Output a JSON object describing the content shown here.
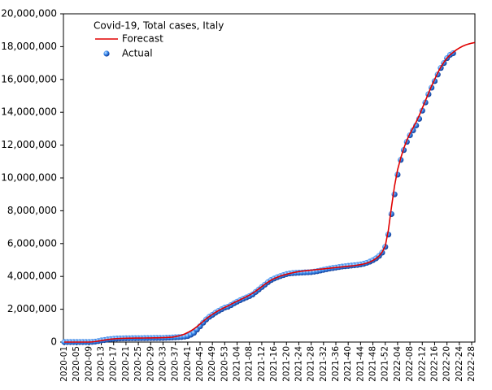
{
  "chart_data": {
    "type": "line",
    "title": "Covid-19, Total cases, Italy",
    "categories": [
      "2020-01",
      null,
      null,
      null,
      "2020-05",
      null,
      null,
      null,
      "2020-09",
      null,
      null,
      null,
      "2020-13",
      null,
      null,
      null,
      "2020-17",
      null,
      null,
      null,
      "2020-21",
      null,
      null,
      null,
      "2020-25",
      null,
      null,
      null,
      "2020-29",
      null,
      null,
      null,
      "2020-33",
      null,
      null,
      null,
      "2020-37",
      null,
      null,
      null,
      "2020-41",
      null,
      null,
      null,
      "2020-45",
      null,
      null,
      null,
      "2020-49",
      null,
      null,
      null,
      "2020-53",
      null,
      null,
      null,
      "2021-04",
      null,
      null,
      null,
      "2021-08",
      null,
      null,
      null,
      "2021-12",
      null,
      null,
      null,
      "2021-16",
      null,
      null,
      null,
      "2021-20",
      null,
      null,
      null,
      "2021-24",
      null,
      null,
      null,
      "2021-28",
      null,
      null,
      null,
      "2021-32",
      null,
      null,
      null,
      "2021-36",
      null,
      null,
      null,
      "2021-40",
      null,
      null,
      null,
      "2021-44",
      null,
      null,
      null,
      "2021-48",
      null,
      null,
      null,
      "2021-52",
      null,
      null,
      null,
      "2022-04",
      null,
      null,
      null,
      "2022-08",
      null,
      null,
      null,
      "2022-12",
      null,
      null,
      null,
      "2022-16",
      null,
      null,
      null,
      "2022-20",
      null,
      null,
      null,
      "2022-24",
      null,
      null,
      null,
      "2022-28",
      null
    ],
    "series": [
      {
        "name": "Forecast",
        "color": "#e00000",
        "style": "line",
        "values": [
          0,
          0,
          0,
          0,
          0,
          0,
          0,
          0,
          0,
          10000,
          30000,
          60000,
          90000,
          120000,
          150000,
          175000,
          195000,
          210000,
          220000,
          228000,
          233000,
          237000,
          240000,
          242000,
          244000,
          246000,
          248000,
          250000,
          252000,
          255000,
          258000,
          262000,
          268000,
          276000,
          287000,
          300000,
          330000,
          370000,
          420000,
          490000,
          580000,
          680000,
          800000,
          940000,
          1100000,
          1260000,
          1420000,
          1560000,
          1690000,
          1810000,
          1920000,
          2020000,
          2110000,
          2200000,
          2300000,
          2400000,
          2490000,
          2580000,
          2670000,
          2760000,
          2860000,
          2970000,
          3100000,
          3240000,
          3380000,
          3520000,
          3650000,
          3770000,
          3870000,
          3950000,
          4020000,
          4080000,
          4130000,
          4180000,
          4220000,
          4260000,
          4290000,
          4320000,
          4340000,
          4360000,
          4380000,
          4400000,
          4420000,
          4440000,
          4460000,
          4480000,
          4500000,
          4520000,
          4540000,
          4560000,
          4580000,
          4600000,
          4620000,
          4640000,
          4660000,
          4690000,
          4720000,
          4760000,
          4810000,
          4880000,
          4970000,
          5090000,
          5250000,
          5480000,
          5850000,
          6800000,
          8200000,
          9500000,
          10500000,
          11200000,
          11800000,
          12300000,
          12700000,
          13050000,
          13400000,
          13800000,
          14250000,
          14700000,
          15150000,
          15600000,
          16000000,
          16400000,
          16750000,
          17050000,
          17300000,
          17500000,
          17650000,
          17800000,
          17920000,
          18020000,
          18100000,
          18160000,
          18210000,
          18250000
        ]
      },
      {
        "name": "Actual",
        "color": "#1a5fd0",
        "style": "dots",
        "values": [
          0,
          0,
          0,
          0,
          0,
          0,
          0,
          200,
          1100,
          9000,
          24000,
          60000,
          100000,
          125000,
          160000,
          180000,
          200000,
          210000,
          220000,
          226000,
          230000,
          233000,
          236000,
          237000,
          238000,
          239000,
          240000,
          242000,
          244000,
          246000,
          247000,
          248000,
          250000,
          260000,
          270000,
          280000,
          290000,
          300000,
          310000,
          330000,
          370000,
          450000,
          560000,
          760000,
          960000,
          1180000,
          1380000,
          1540000,
          1660000,
          1790000,
          1900000,
          2000000,
          2100000,
          2150000,
          2250000,
          2360000,
          2460000,
          2550000,
          2640000,
          2720000,
          2800000,
          2900000,
          3050000,
          3200000,
          3350000,
          3500000,
          3650000,
          3780000,
          3870000,
          3950000,
          4020000,
          4080000,
          4140000,
          4180000,
          4200000,
          4215000,
          4225000,
          4235000,
          4245000,
          4255000,
          4265000,
          4290000,
          4320000,
          4360000,
          4400000,
          4440000,
          4480000,
          4510000,
          4540000,
          4570000,
          4600000,
          4620000,
          4640000,
          4660000,
          4680000,
          4700000,
          4730000,
          4770000,
          4830000,
          4900000,
          4990000,
          5100000,
          5250000,
          5450000,
          5800000,
          6550000,
          7800000,
          9000000,
          10200000,
          11100000,
          11700000,
          12200000,
          12600000,
          12900000,
          13200000,
          13600000,
          14100000,
          14600000,
          15100000,
          15500000,
          15900000,
          16300000,
          16700000,
          17000000,
          17300000,
          17500000,
          17600000,
          null,
          null,
          null,
          null,
          null,
          null,
          null
        ]
      }
    ],
    "ylim": [
      0,
      20000000
    ],
    "yticks": [
      0,
      {
        "value": 2000000,
        "label": "2,000,000"
      },
      {
        "value": 4000000,
        "label": "4,000,000"
      },
      {
        "value": 6000000,
        "label": "6,000,000"
      },
      {
        "value": 8000000,
        "label": "8,000,000"
      },
      {
        "value": 10000000,
        "label": "10,000,000"
      },
      {
        "value": 12000000,
        "label": "12,000,000"
      },
      {
        "value": 14000000,
        "label": "14,000,000"
      },
      {
        "value": 16000000,
        "label": "16,000,000"
      },
      {
        "value": 18000000,
        "label": "18,000,000"
      },
      {
        "value": 20000000,
        "label": "20,000,000"
      }
    ],
    "grid": false
  }
}
